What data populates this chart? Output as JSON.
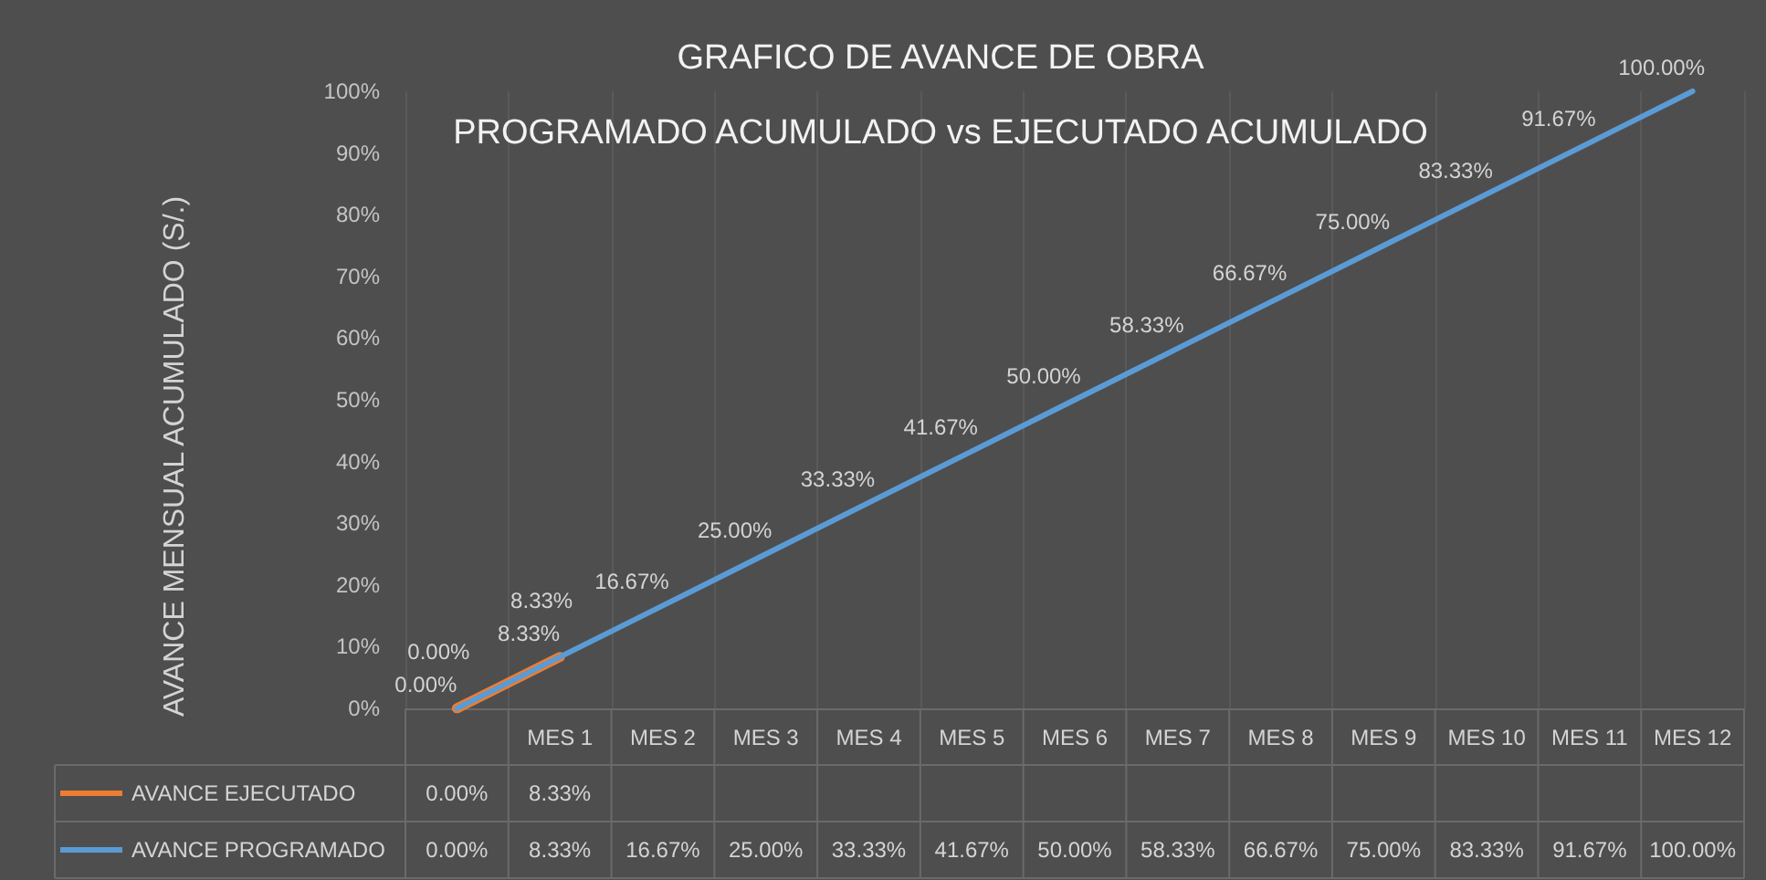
{
  "chart_data": {
    "type": "line",
    "title": "GRAFICO DE AVANCE DE OBRA",
    "subtitle": "PROGRAMADO ACUMULADO vs EJECUTADO ACUMULADO",
    "ylabel": "AVANCE MENSUAL ACUMULADO (S/.)",
    "categories": [
      null,
      "MES 1",
      "MES 2",
      "MES 3",
      "MES 4",
      "MES 5",
      "MES 6",
      "MES 7",
      "MES 8",
      "MES 9",
      "MES 10",
      "MES 11",
      "MES 12"
    ],
    "series": [
      {
        "name": "AVANCE EJECUTADO",
        "color": "#ed7d31",
        "values": [
          0,
          8.33,
          null,
          null,
          null,
          null,
          null,
          null,
          null,
          null,
          null,
          null,
          null
        ],
        "value_labels": [
          "0.00%",
          "8.33%",
          null,
          null,
          null,
          null,
          null,
          null,
          null,
          null,
          null,
          null,
          null
        ]
      },
      {
        "name": "AVANCE PROGRAMADO",
        "color": "#5b9bd5",
        "values": [
          0,
          8.33,
          16.67,
          25,
          33.33,
          41.67,
          50,
          58.33,
          66.67,
          75,
          83.33,
          91.67,
          100
        ],
        "value_labels": [
          "0.00%",
          "8.33%",
          "16.67%",
          "25.00%",
          "33.33%",
          "41.67%",
          "50.00%",
          "58.33%",
          "66.67%",
          "75.00%",
          "83.33%",
          "91.67%",
          "100.00%"
        ]
      }
    ],
    "ylim": [
      0,
      100
    ],
    "yticks": [
      {
        "value": 0,
        "label": "0%"
      },
      {
        "value": 10,
        "label": "10%"
      },
      {
        "value": 20,
        "label": "20%"
      },
      {
        "value": 30,
        "label": "30%"
      },
      {
        "value": 40,
        "label": "40%"
      },
      {
        "value": 50,
        "label": "50%"
      },
      {
        "value": 60,
        "label": "60%"
      },
      {
        "value": 70,
        "label": "70%"
      },
      {
        "value": 80,
        "label": "80%"
      },
      {
        "value": 90,
        "label": "90%"
      },
      {
        "value": 100,
        "label": "100%"
      }
    ],
    "grid": "x",
    "legend": "bottom left",
    "marker": "none",
    "line_style": "solid"
  }
}
